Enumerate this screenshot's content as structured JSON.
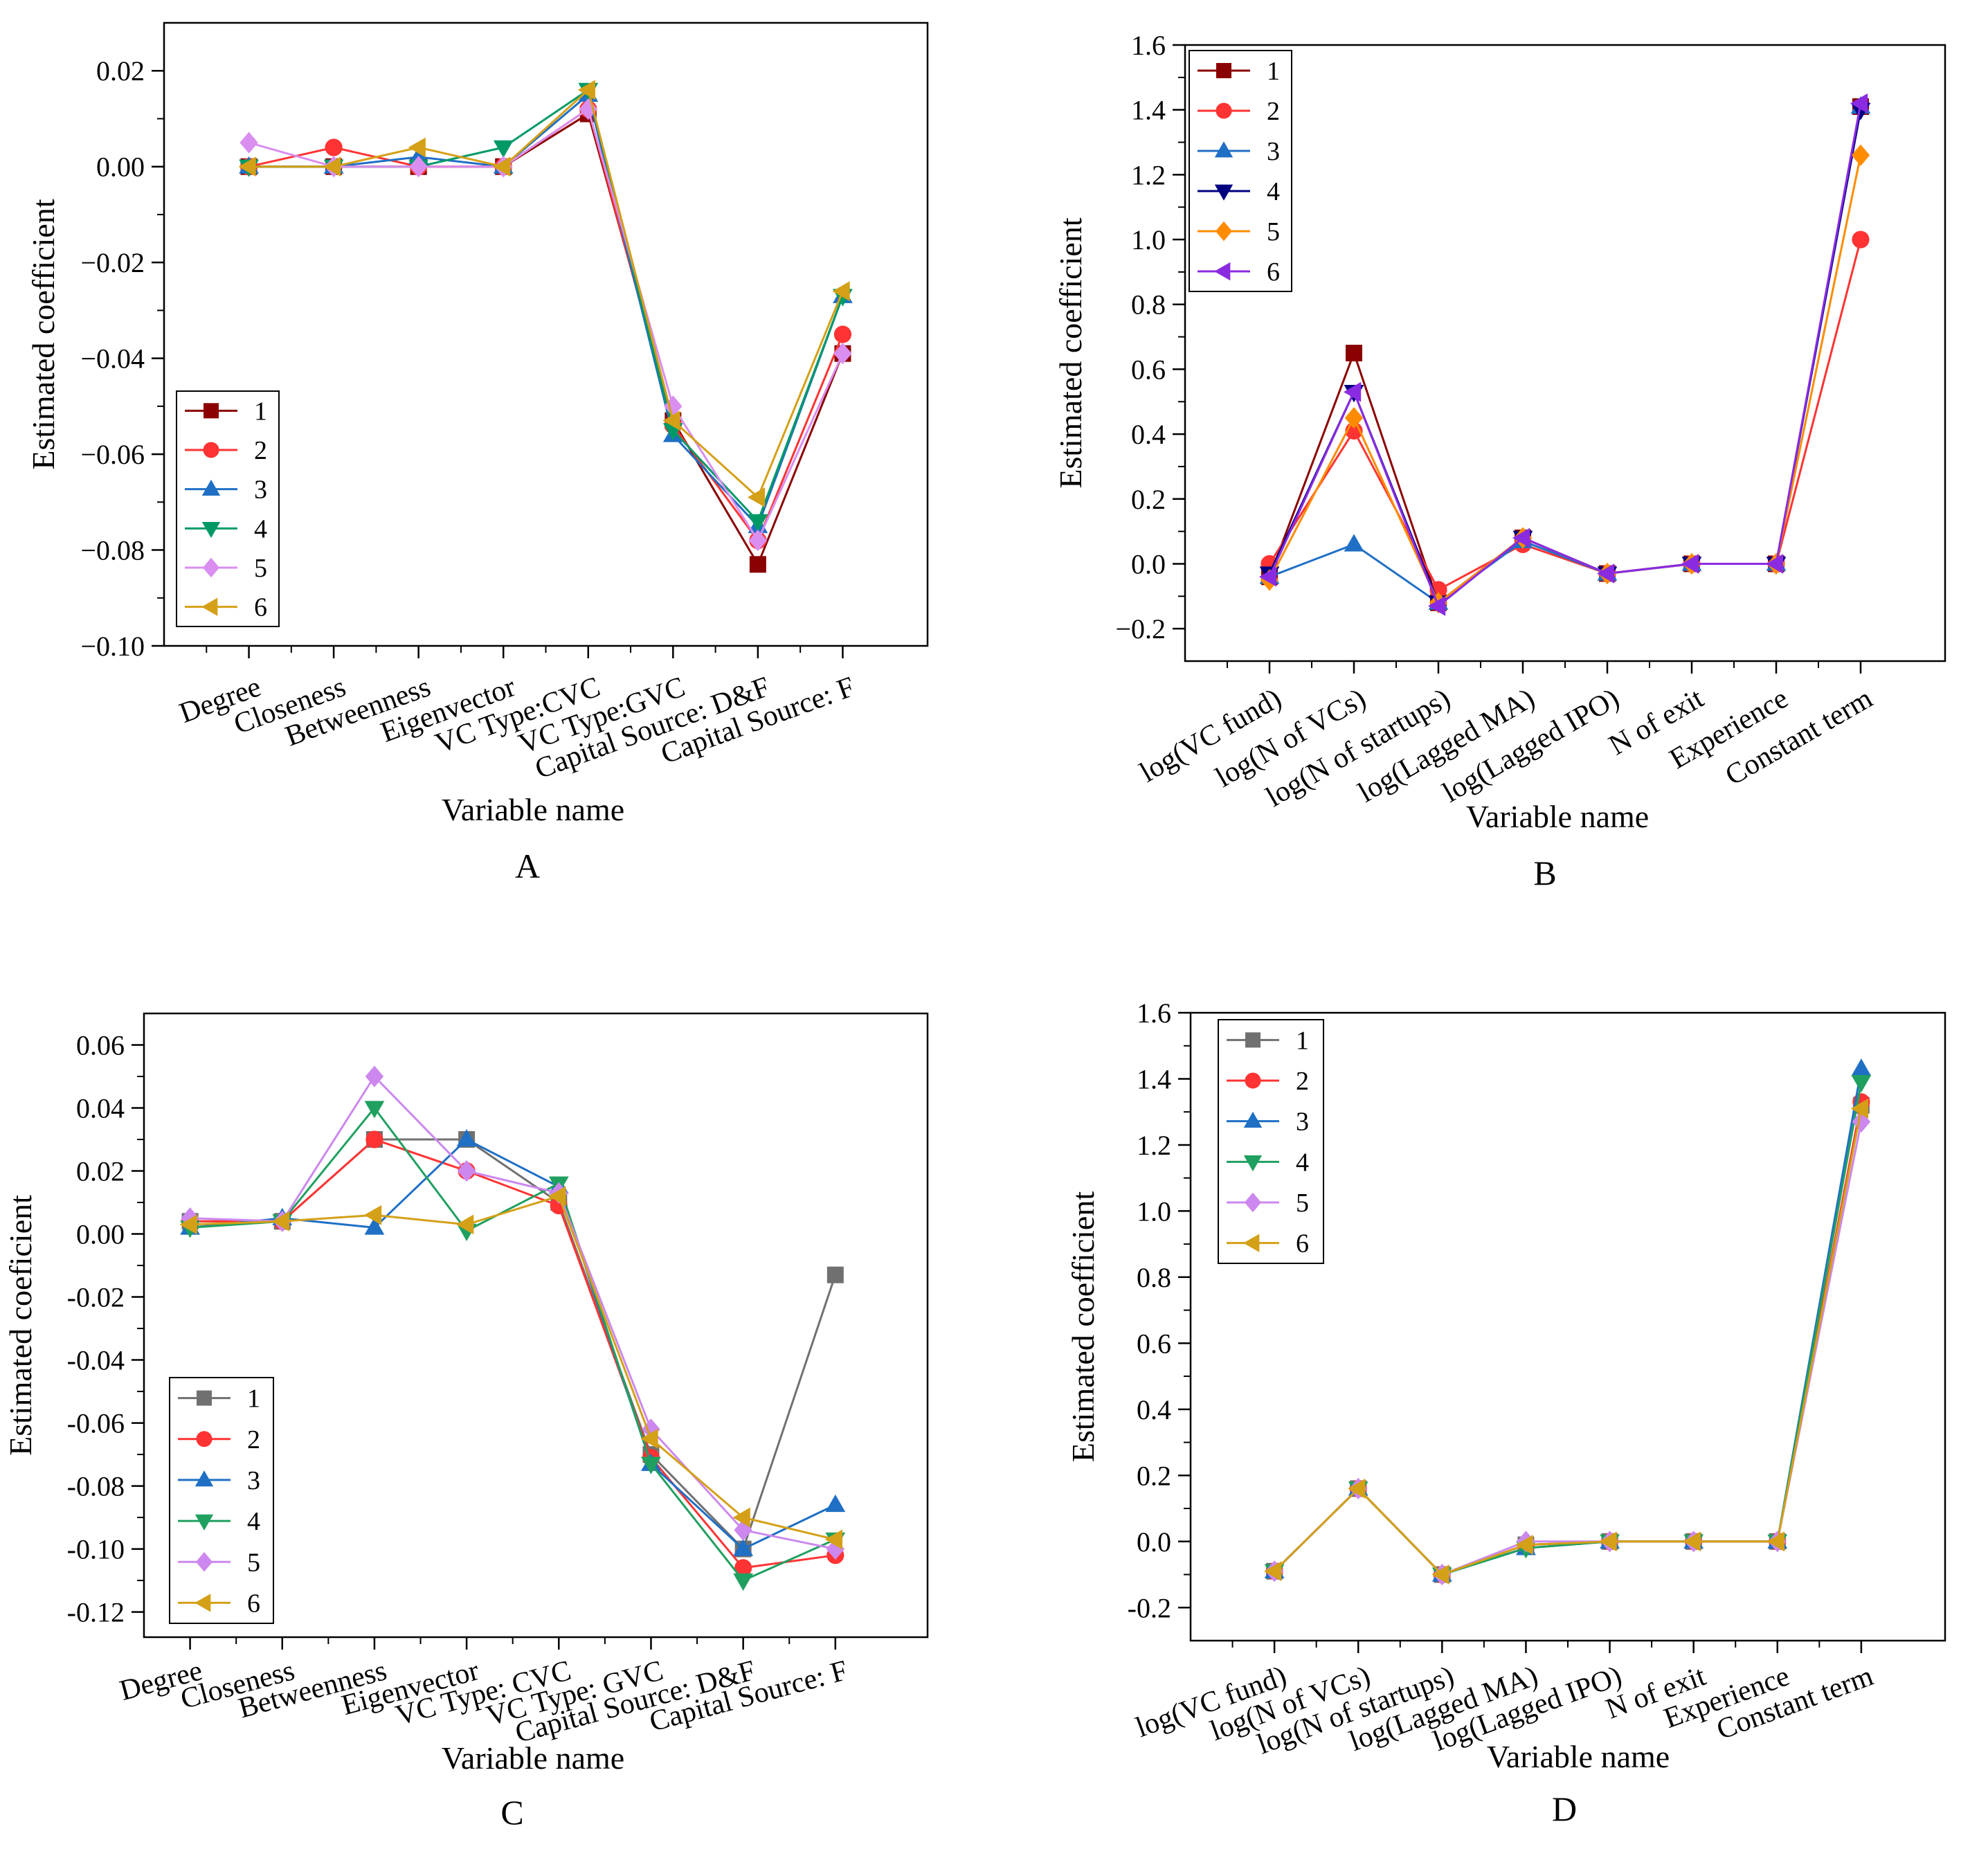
{
  "chart_data": [
    {
      "id": "A",
      "type": "line",
      "panel_label": "A",
      "xlabel": "Variable name",
      "ylabel": "Estimated coefficient",
      "ylim": [
        -0.1,
        0.03
      ],
      "yticks": [
        -0.1,
        -0.08,
        -0.06,
        -0.04,
        -0.02,
        0.0,
        0.02
      ],
      "ytick_labels": [
        "−0.10",
        "−0.08",
        "−0.06",
        "−0.04",
        "−0.02",
        "0.00",
        "0.02"
      ],
      "categories": [
        "Degree",
        "Closeness",
        "Betweenness",
        "Eigenvector",
        "VC Type:CVC",
        "VC Type:GVC",
        "Capital Source: D&F",
        "Capital Source: F"
      ],
      "legend_position": "bottom-left",
      "series": [
        {
          "name": "1",
          "color": "#8b0000",
          "marker": "square",
          "values": [
            0.0,
            0.0,
            0.0,
            0.0,
            0.011,
            -0.053,
            -0.083,
            -0.039
          ]
        },
        {
          "name": "2",
          "color": "#ff3333",
          "marker": "circle",
          "values": [
            0.0,
            0.004,
            0.0,
            0.0,
            0.012,
            -0.054,
            -0.078,
            -0.035
          ]
        },
        {
          "name": "3",
          "color": "#1f6fc5",
          "marker": "triangle-up",
          "values": [
            0.0,
            0.0,
            0.002,
            0.0,
            0.015,
            -0.056,
            -0.075,
            -0.027
          ]
        },
        {
          "name": "4",
          "color": "#009966",
          "marker": "triangle-down",
          "values": [
            0.0,
            0.0,
            0.0,
            0.004,
            0.016,
            -0.055,
            -0.074,
            -0.027
          ]
        },
        {
          "name": "5",
          "color": "#d98ef0",
          "marker": "diamond",
          "values": [
            0.005,
            0.0,
            0.0,
            0.0,
            0.012,
            -0.05,
            -0.078,
            -0.039
          ]
        },
        {
          "name": "6",
          "color": "#d4a017",
          "marker": "triangle-left",
          "values": [
            0.0,
            0.0,
            0.004,
            0.0,
            0.016,
            -0.053,
            -0.069,
            -0.026
          ]
        }
      ]
    },
    {
      "id": "B",
      "type": "line",
      "panel_label": "B",
      "xlabel": "Variable name",
      "ylabel": "Estimated coefficient",
      "ylim": [
        -0.3,
        1.6
      ],
      "yticks": [
        -0.2,
        0.0,
        0.2,
        0.4,
        0.6,
        0.8,
        1.0,
        1.2,
        1.4,
        1.6
      ],
      "ytick_labels": [
        "−0.2",
        "0.0",
        "0.2",
        "0.4",
        "0.6",
        "0.8",
        "1.0",
        "1.2",
        "1.4",
        "1.6"
      ],
      "categories": [
        "log(VC fund)",
        "log(N of VCs)",
        "log(N of startups)",
        "log(Lagged MA)",
        "log(Lagged IPO)",
        "N of exit",
        "Experience",
        "Constant term"
      ],
      "legend_position": "top-left",
      "series": [
        {
          "name": "1",
          "color": "#8b0000",
          "marker": "square",
          "values": [
            -0.04,
            0.65,
            -0.12,
            0.08,
            -0.03,
            0.0,
            0.0,
            1.41
          ]
        },
        {
          "name": "2",
          "color": "#ff3333",
          "marker": "circle",
          "values": [
            0.0,
            0.41,
            -0.08,
            0.06,
            -0.03,
            0.0,
            0.0,
            1.0
          ]
        },
        {
          "name": "3",
          "color": "#1f6fc5",
          "marker": "triangle-up",
          "values": [
            -0.04,
            0.06,
            -0.12,
            0.07,
            -0.03,
            0.0,
            0.0,
            1.41
          ]
        },
        {
          "name": "4",
          "color": "#000080",
          "marker": "triangle-down",
          "values": [
            -0.03,
            0.53,
            -0.12,
            0.08,
            -0.03,
            0.0,
            0.0,
            1.4
          ]
        },
        {
          "name": "5",
          "color": "#ff8c00",
          "marker": "diamond",
          "values": [
            -0.05,
            0.45,
            -0.12,
            0.08,
            -0.03,
            0.0,
            0.0,
            1.26
          ]
        },
        {
          "name": "6",
          "color": "#8a2be2",
          "marker": "triangle-left",
          "values": [
            -0.04,
            0.53,
            -0.13,
            0.08,
            -0.03,
            0.0,
            0.0,
            1.42
          ]
        }
      ]
    },
    {
      "id": "C",
      "type": "line",
      "panel_label": "C",
      "xlabel": "Variable name",
      "ylabel": "Estimated coeficient",
      "ylim": [
        -0.128,
        0.07
      ],
      "yticks": [
        -0.12,
        -0.1,
        -0.08,
        -0.06,
        -0.04,
        -0.02,
        0.0,
        0.02,
        0.04,
        0.06
      ],
      "ytick_labels": [
        "-0.12",
        "-0.10",
        "-0.08",
        "-0.06",
        "-0.04",
        "-0.02",
        "0.00",
        "0.02",
        "0.04",
        "0.06"
      ],
      "categories": [
        "Degree",
        "Closeness",
        "Betweenness",
        "Eigenvector",
        "VC Type: CVC",
        "VC Type: GVC",
        "Capital Source: D&F",
        "Capital Source: F"
      ],
      "legend_position": "bottom-left",
      "series": [
        {
          "name": "1",
          "color": "#707070",
          "marker": "square",
          "values": [
            0.004,
            0.004,
            0.03,
            0.03,
            0.01,
            -0.07,
            -0.1,
            -0.013
          ]
        },
        {
          "name": "2",
          "color": "#ff3333",
          "marker": "circle",
          "values": [
            0.004,
            0.004,
            0.03,
            0.02,
            0.009,
            -0.071,
            -0.106,
            -0.102
          ]
        },
        {
          "name": "3",
          "color": "#1f6fc5",
          "marker": "triangle-up",
          "values": [
            0.002,
            0.005,
            0.002,
            0.03,
            0.015,
            -0.073,
            -0.1,
            -0.086
          ]
        },
        {
          "name": "4",
          "color": "#20a060",
          "marker": "triangle-down",
          "values": [
            0.002,
            0.004,
            0.04,
            0.001,
            0.016,
            -0.073,
            -0.11,
            -0.097
          ]
        },
        {
          "name": "5",
          "color": "#cc88ee",
          "marker": "diamond",
          "values": [
            0.005,
            0.004,
            0.05,
            0.02,
            0.013,
            -0.062,
            -0.094,
            -0.1
          ]
        },
        {
          "name": "6",
          "color": "#d4a017",
          "marker": "triangle-left",
          "values": [
            0.003,
            0.004,
            0.006,
            0.003,
            0.012,
            -0.065,
            -0.09,
            -0.097
          ]
        }
      ]
    },
    {
      "id": "D",
      "type": "line",
      "panel_label": "D",
      "xlabel": "Variable name",
      "ylabel": "Estimated coefficient",
      "ylim": [
        -0.3,
        1.6
      ],
      "yticks": [
        -0.2,
        0.0,
        0.2,
        0.4,
        0.6,
        0.8,
        1.0,
        1.2,
        1.4,
        1.6
      ],
      "ytick_labels": [
        "-0.2",
        "0.0",
        "0.2",
        "0.4",
        "0.6",
        "0.8",
        "1.0",
        "1.2",
        "1.4",
        "1.6"
      ],
      "categories": [
        "log(VC fund)",
        "log(N of VCs)",
        "log(N of startups)",
        "log(Lagged MA)",
        "log(Lagged IPO)",
        "N of exit",
        "Experience",
        "Constant term"
      ],
      "legend_position": "top-left",
      "series": [
        {
          "name": "1",
          "color": "#707070",
          "marker": "square",
          "values": [
            -0.09,
            0.16,
            -0.1,
            -0.01,
            0.0,
            0.0,
            0.0,
            1.32
          ]
        },
        {
          "name": "2",
          "color": "#ff3333",
          "marker": "circle",
          "values": [
            -0.09,
            0.16,
            -0.1,
            -0.01,
            0.0,
            0.0,
            0.0,
            1.33
          ]
        },
        {
          "name": "3",
          "color": "#1f6fc5",
          "marker": "triangle-up",
          "values": [
            -0.09,
            0.16,
            -0.1,
            -0.02,
            0.0,
            0.0,
            0.0,
            1.43
          ]
        },
        {
          "name": "4",
          "color": "#20a060",
          "marker": "triangle-down",
          "values": [
            -0.09,
            0.16,
            -0.1,
            -0.02,
            0.0,
            0.0,
            0.0,
            1.39
          ]
        },
        {
          "name": "5",
          "color": "#cc88ee",
          "marker": "diamond",
          "values": [
            -0.09,
            0.16,
            -0.1,
            0.0,
            0.0,
            0.0,
            0.0,
            1.27
          ]
        },
        {
          "name": "6",
          "color": "#d4a017",
          "marker": "triangle-left",
          "values": [
            -0.09,
            0.16,
            -0.1,
            -0.01,
            0.0,
            0.0,
            0.0,
            1.31
          ]
        }
      ]
    }
  ]
}
